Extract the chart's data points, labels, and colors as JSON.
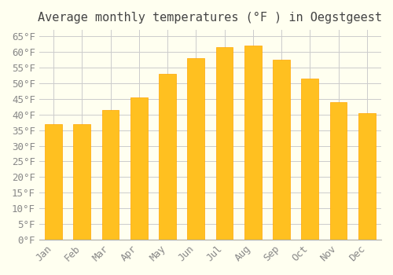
{
  "title": "Average monthly temperatures (°F ) in Oegstgeest",
  "months": [
    "Jan",
    "Feb",
    "Mar",
    "Apr",
    "May",
    "Jun",
    "Jul",
    "Aug",
    "Sep",
    "Oct",
    "Nov",
    "Dec"
  ],
  "values": [
    37,
    37,
    41.5,
    45.5,
    53,
    58,
    61.5,
    62,
    57.5,
    51.5,
    44,
    40.5
  ],
  "bar_color_main": "#FFC020",
  "bar_color_edge": "#FFA500",
  "background_color": "#FFFFF0",
  "grid_color": "#CCCCCC",
  "ylim": [
    0,
    67
  ],
  "yticks": [
    0,
    5,
    10,
    15,
    20,
    25,
    30,
    35,
    40,
    45,
    50,
    55,
    60,
    65
  ],
  "ytick_labels": [
    "0°F",
    "5°F",
    "10°F",
    "15°F",
    "20°F",
    "25°F",
    "30°F",
    "35°F",
    "40°F",
    "45°F",
    "50°F",
    "55°F",
    "60°F",
    "65°F"
  ],
  "title_fontsize": 11,
  "tick_fontsize": 9,
  "font_family": "monospace"
}
